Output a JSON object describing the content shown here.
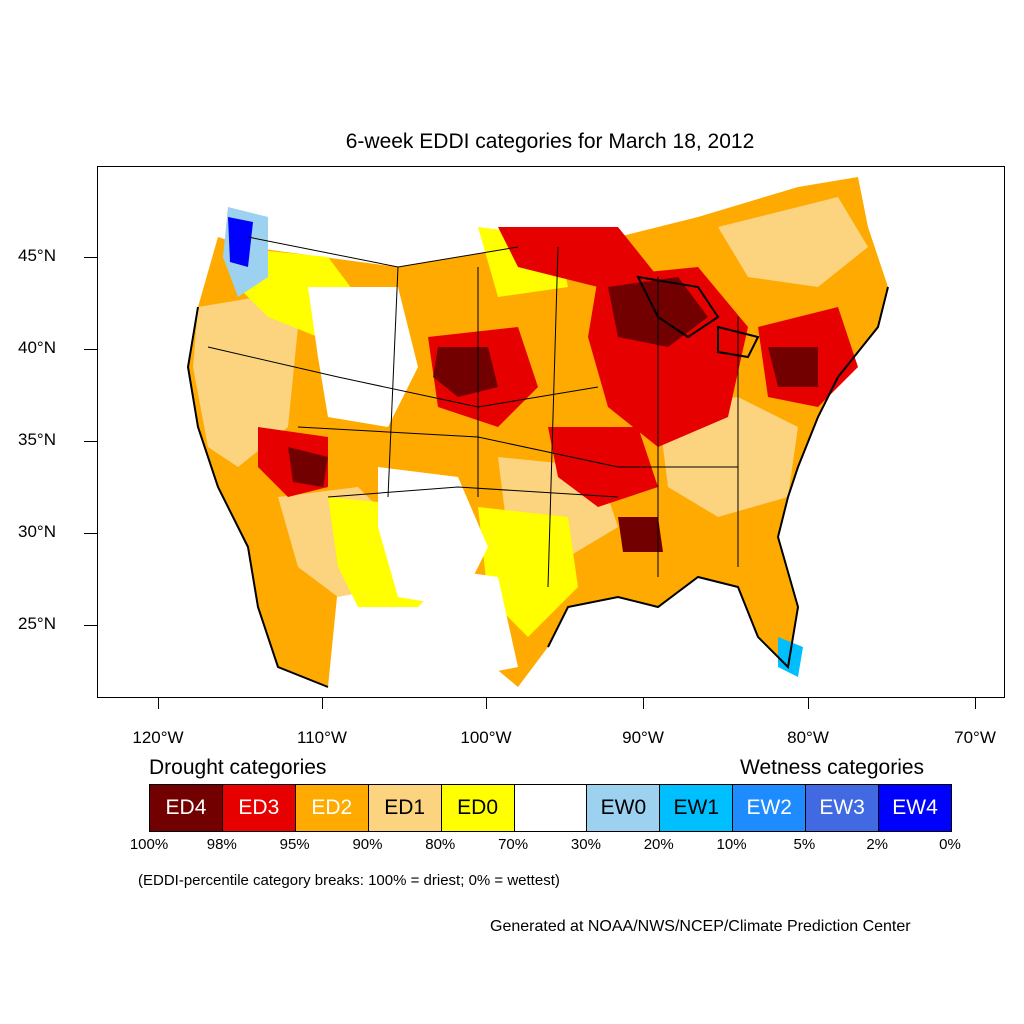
{
  "title": "6-week EDDI categories for March 18, 2012",
  "lat_labels": [
    "45°N",
    "40°N",
    "35°N",
    "30°N",
    "25°N"
  ],
  "lon_labels": [
    "120°W",
    "110°W",
    "100°W",
    "90°W",
    "80°W",
    "70°W"
  ],
  "legend": {
    "drought_heading": "Drought categories",
    "wetness_heading": "Wetness categories",
    "categories": [
      {
        "label": "ED4",
        "color": "#730000",
        "text_color": "#ffffff"
      },
      {
        "label": "ED3",
        "color": "#e60000",
        "text_color": "#ffffff"
      },
      {
        "label": "ED2",
        "color": "#ffaa00",
        "text_color": "#ffffff"
      },
      {
        "label": "ED1",
        "color": "#fcd37f",
        "text_color": "#000000"
      },
      {
        "label": "ED0",
        "color": "#ffff00",
        "text_color": "#000000"
      },
      {
        "label": "",
        "color": "#ffffff",
        "text_color": "#000000"
      },
      {
        "label": "EW0",
        "color": "#9cd1f0",
        "text_color": "#000000"
      },
      {
        "label": "EW1",
        "color": "#00bfff",
        "text_color": "#000000"
      },
      {
        "label": "EW2",
        "color": "#1e8cff",
        "text_color": "#ffffff"
      },
      {
        "label": "EW3",
        "color": "#4169e1",
        "text_color": "#ffffff"
      },
      {
        "label": "EW4",
        "color": "#0000ff",
        "text_color": "#ffffff"
      }
    ],
    "percentiles": [
      "100%",
      "98%",
      "95%",
      "90%",
      "80%",
      "70%",
      "30%",
      "20%",
      "10%",
      "5%",
      "2%",
      "0%"
    ]
  },
  "note": "(EDDI-percentile category breaks: 100% = driest; 0% = wettest)",
  "credit": "Generated at NOAA/NWS/NCEP/Climate Prediction Center"
}
